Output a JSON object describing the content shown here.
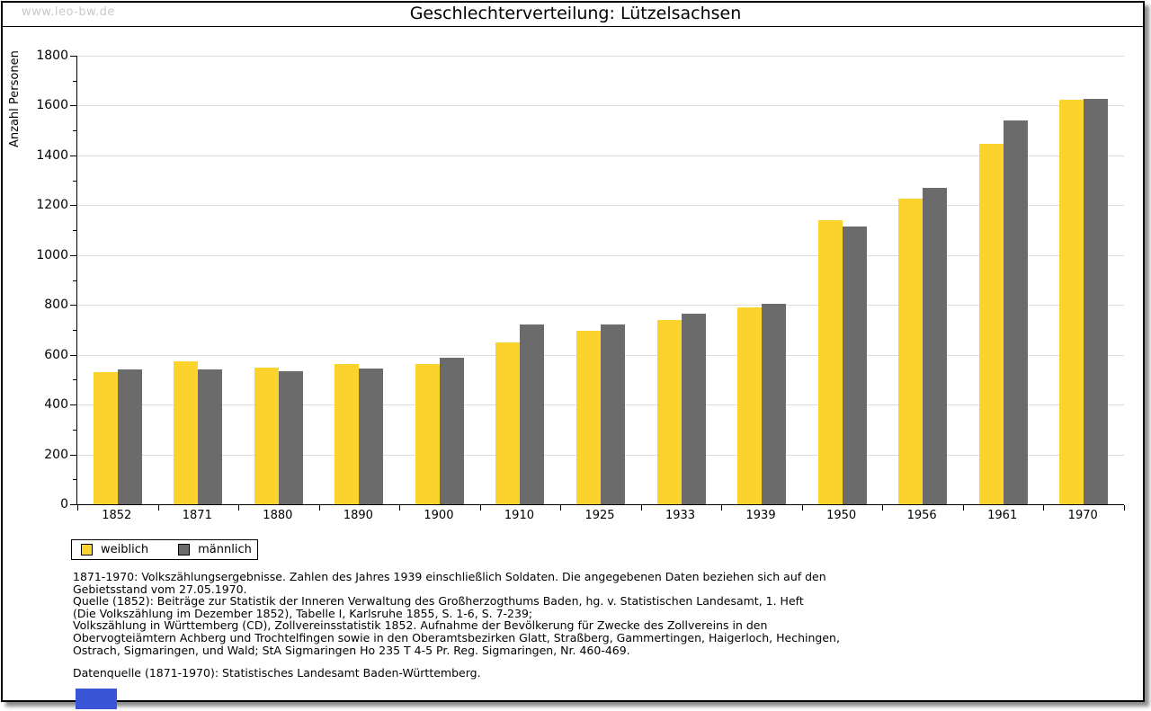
{
  "watermark": "www.leo-bw.de",
  "chart_data": {
    "type": "bar",
    "title": "Geschlechterverteilung: Lützelsachsen",
    "ylabel": "Anzahl Personen",
    "xlabel": "",
    "ylim": [
      0,
      1800
    ],
    "yticks": [
      0,
      200,
      400,
      600,
      800,
      1000,
      1200,
      1400,
      1600,
      1800
    ],
    "grid": "horizontal",
    "legend_position": "bottom-left",
    "categories": [
      "1852",
      "1871",
      "1880",
      "1890",
      "1900",
      "1910",
      "1925",
      "1933",
      "1939",
      "1950",
      "1956",
      "1961",
      "1970"
    ],
    "series": [
      {
        "name": "weiblich",
        "color": "#FBD32C",
        "values": [
          530,
          573,
          548,
          562,
          562,
          650,
          695,
          740,
          790,
          1140,
          1225,
          1445,
          1622
        ]
      },
      {
        "name": "männlich",
        "color": "#6B6B6B",
        "values": [
          540,
          540,
          533,
          543,
          588,
          720,
          723,
          765,
          805,
          1115,
          1270,
          1540,
          1627
        ]
      }
    ]
  },
  "footer": {
    "lines": [
      "1871-1970: Volkszählungsergebnisse. Zahlen des Jahres 1939 einschließlich Soldaten. Die angegebenen Daten beziehen sich auf den",
      "Gebietsstand vom 27.05.1970.",
      "Quelle (1852): Beiträge zur Statistik der Inneren Verwaltung des Großherzogthums Baden, hg. v. Statistischen Landesamt, 1. Heft",
      "(Die Volkszählung im Dezember 1852), Tabelle I, Karlsruhe 1855, S. 1-6, S. 7-239;",
      "Volkszählung in Württemberg (CD), Zollvereinsstatistik 1852. Aufnahme der Bevölkerung für Zwecke des Zollvereins in den",
      "Obervogteiämtern Achberg und Trochtelfingen sowie in den Oberamtsbezirken Glatt, Straßberg, Gammertingen, Haigerloch, Hechingen,",
      "Ostrach, Sigmaringen, und Wald; StA Sigmaringen Ho 235 T 4-5 Pr. Reg. Sigmaringen, Nr. 460-469."
    ],
    "datasource": "Datenquelle (1871-1970): Statistisches Landesamt Baden-Württemberg."
  },
  "colors": {
    "grid": "#DCDCDC",
    "watermark": "#C9C9C9",
    "axis": "#000000",
    "marker": "#3B55D8"
  }
}
